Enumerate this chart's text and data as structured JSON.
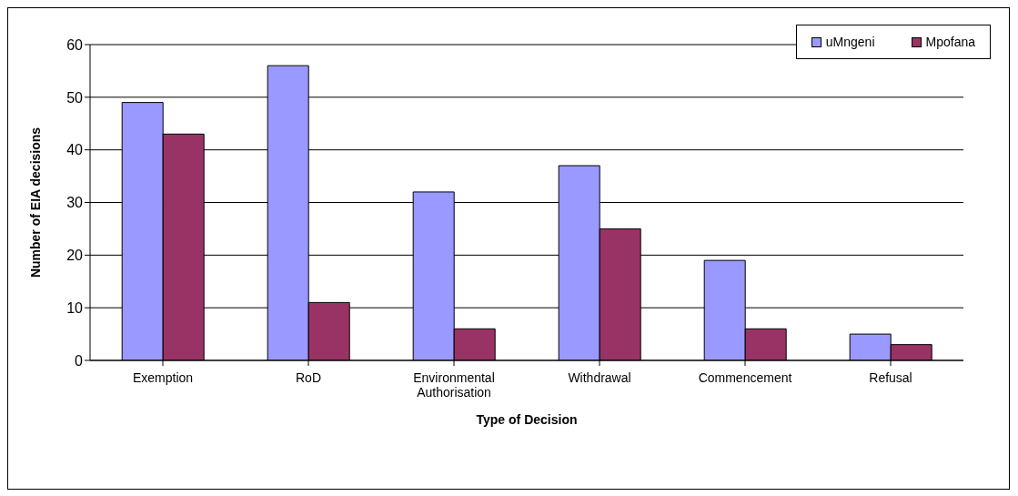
{
  "chart_data": {
    "type": "bar",
    "xlabel": "Type of Decision",
    "ylabel": "Number of EIA decisions",
    "categories": [
      "Exemption",
      "RoD",
      "Environmental Authorisation",
      "Withdrawal",
      "Commencement",
      "Refusal"
    ],
    "series": [
      {
        "name": "uMngeni",
        "color": "#9999ff",
        "values": [
          49,
          56,
          32,
          37,
          19,
          5
        ]
      },
      {
        "name": "Mpofana",
        "color": "#993366",
        "values": [
          43,
          11,
          6,
          25,
          6,
          3
        ]
      }
    ],
    "ylim": [
      0,
      60
    ],
    "yticks": [
      0,
      10,
      20,
      30,
      40,
      50,
      60
    ],
    "grid": "y",
    "legend": "top right"
  }
}
